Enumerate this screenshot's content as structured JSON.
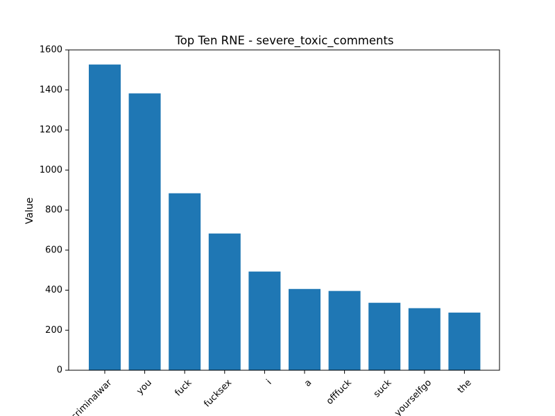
{
  "chart_data": {
    "type": "bar",
    "title": "Top Ten RNE - severe_toxic_comments",
    "xlabel": "",
    "ylabel": "Value",
    "categories": [
      "criminalwar",
      "you",
      "fuck",
      "fucksex",
      "i",
      "a",
      "offfuck",
      "suck",
      "yourselfgo",
      "the"
    ],
    "values": [
      1527,
      1383,
      884,
      683,
      493,
      406,
      396,
      337,
      310,
      288
    ],
    "ylim": [
      0,
      1600
    ],
    "yticks": [
      0,
      200,
      400,
      600,
      800,
      1000,
      1200,
      1400,
      1600
    ],
    "bar_color": "#1f77b4",
    "grid": false,
    "legend": "none"
  }
}
